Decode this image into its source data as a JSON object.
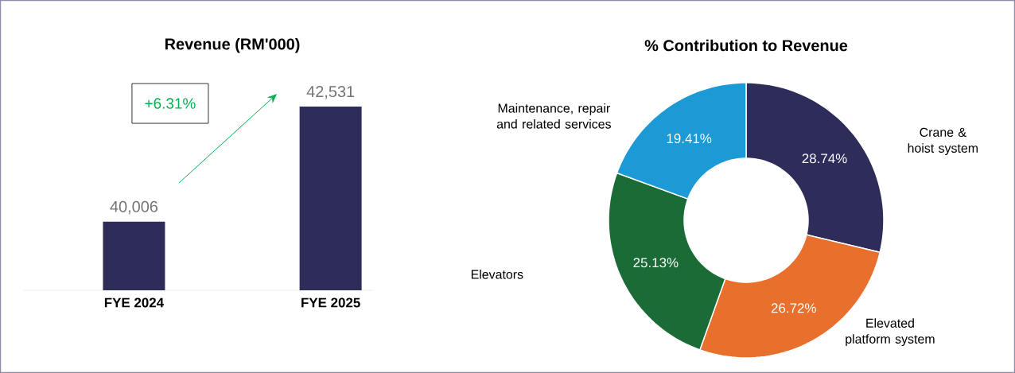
{
  "chart_data": [
    {
      "type": "bar",
      "title": "Revenue (RM'000)",
      "categories": [
        "FYE 2024",
        "FYE 2025"
      ],
      "values": [
        40006,
        42531
      ],
      "value_labels": [
        "40,006",
        "42,531"
      ],
      "color": "#2e2d5a",
      "ylim": [
        38500,
        42531
      ],
      "annotations": [
        "+6.31%"
      ]
    },
    {
      "type": "donut",
      "title": "% Contribution to Revenue",
      "categories": [
        "Crane & hoist system",
        "Elevated platform system",
        "Elevators",
        "Maintenance, repair and related services"
      ],
      "values": [
        28.74,
        26.72,
        25.13,
        19.41
      ],
      "value_labels": [
        "28.74%",
        "26.72%",
        "25.13%",
        "19.41%"
      ],
      "colors": [
        "#2e2d5a",
        "#e8702c",
        "#1b6b37",
        "#1b9ad6"
      ]
    }
  ]
}
